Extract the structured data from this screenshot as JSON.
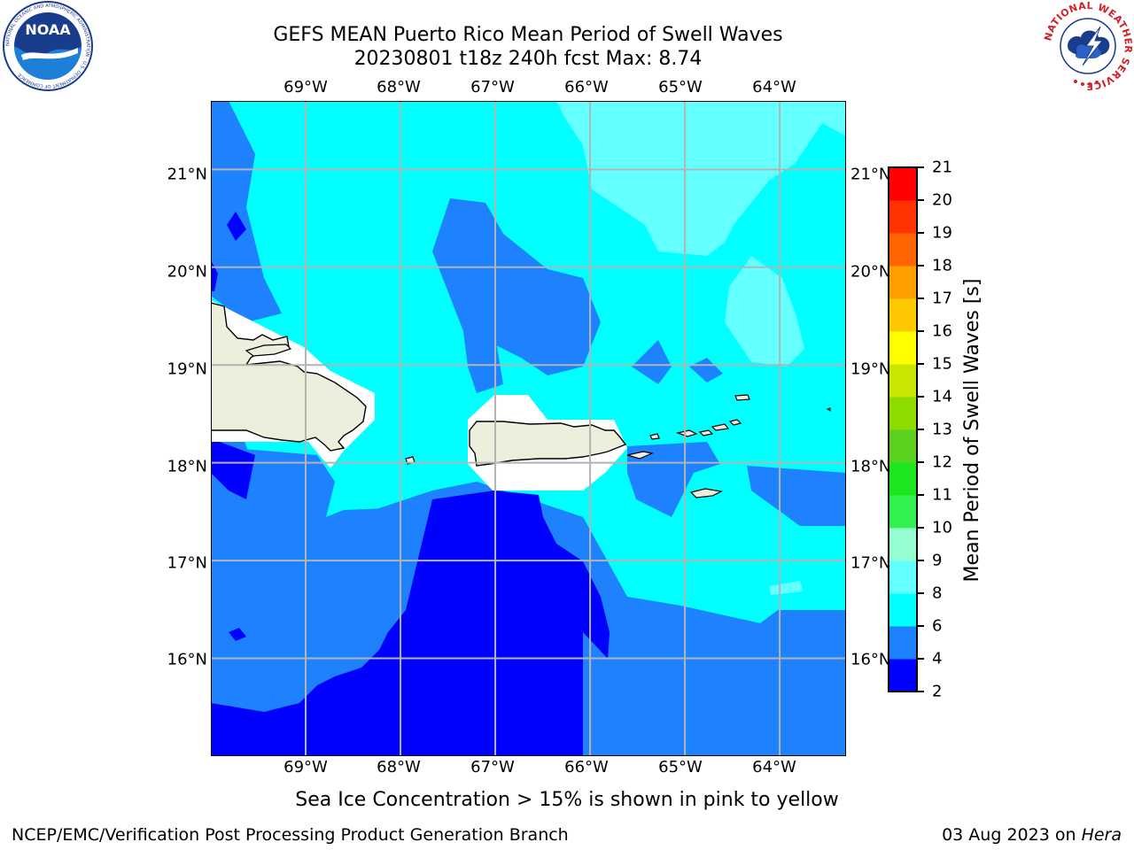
{
  "header": {
    "title_line1": "GEFS MEAN Puerto Rico Mean Period of Swell Waves",
    "title_line2": "20230801 t18z 240h fcst   Max: 8.74"
  },
  "logos": {
    "left": {
      "name": "noaa-logo",
      "text": "NOAA",
      "ring_text": "NATIONAL OCEANIC AND ATMOSPHERIC ADMINISTRATION · U.S. DEPARTMENT OF COMMERCE"
    },
    "right": {
      "name": "nws-logo",
      "ring_text": "NATIONAL WEATHER SERVICE"
    }
  },
  "map": {
    "lon_range": [
      -70.0,
      -63.3
    ],
    "lat_range": [
      15.0,
      21.7
    ],
    "lon_ticks": [
      "69°W",
      "68°W",
      "67°W",
      "66°W",
      "65°W",
      "64°W"
    ],
    "lat_ticks": [
      "21°N",
      "20°N",
      "19°N",
      "18°N",
      "17°N",
      "16°N"
    ],
    "gridlines": true,
    "land_color": "#eeeedd",
    "islands": [
      "Hispaniola",
      "Puerto Rico",
      "Virgin Islands",
      "St. Croix",
      "Mona Island"
    ]
  },
  "colorbar": {
    "label": "Mean Period of Swell Waves [s]",
    "ticks": [
      "2",
      "4",
      "6",
      "8",
      "9",
      "10",
      "11",
      "12",
      "13",
      "14",
      "15",
      "16",
      "17",
      "18",
      "19",
      "20",
      "21"
    ],
    "levels": [
      2,
      4,
      6,
      8,
      9,
      10,
      11,
      12,
      13,
      14,
      15,
      16,
      17,
      18,
      19,
      20,
      21
    ],
    "colors": [
      "#0000ff",
      "#1e82ff",
      "#00ffff",
      "#64ffff",
      "#96ffd2",
      "#32f050",
      "#1ee61e",
      "#5ad21e",
      "#8cdc00",
      "#c8e600",
      "#ffff00",
      "#ffc800",
      "#ffa000",
      "#ff6400",
      "#ff3200",
      "#ff0000"
    ]
  },
  "footer": {
    "note": "Sea Ice Concentration > 15% is shown in pink to yellow",
    "left": "NCEP/EMC/Verification Post Processing Product Generation Branch",
    "right_prefix": "03 Aug 2023 on ",
    "right_host": "Hera"
  }
}
